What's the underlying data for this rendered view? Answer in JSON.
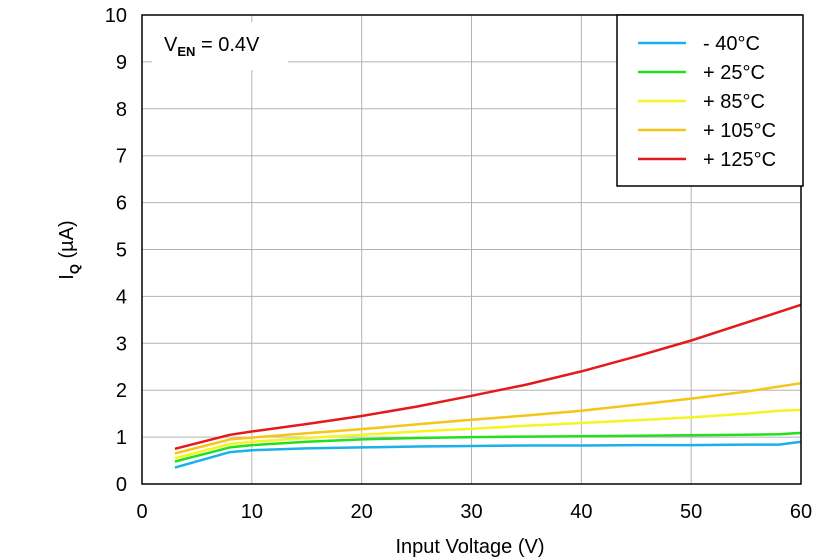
{
  "chart_data": {
    "type": "line",
    "title": "",
    "annotation": {
      "main": "V",
      "sub": "EN",
      "rest": " = 0.4V"
    },
    "xlabel": "Input Voltage (V)",
    "ylabel": {
      "main": "I",
      "sub": "Q",
      "rest": " (µA)"
    },
    "xlim": [
      0,
      60
    ],
    "ylim": [
      0,
      10
    ],
    "xticks": [
      0,
      10,
      20,
      30,
      40,
      50,
      60
    ],
    "yticks": [
      0,
      1,
      2,
      3,
      4,
      5,
      6,
      7,
      8,
      9,
      10
    ],
    "grid": true,
    "legend_position": "top-right",
    "series": [
      {
        "name": "- 40°C",
        "color": "#1ab0ea",
        "x": [
          3,
          8,
          10,
          15,
          20,
          25,
          30,
          35,
          40,
          45,
          50,
          55,
          58,
          60
        ],
        "values": [
          0.35,
          0.68,
          0.72,
          0.76,
          0.78,
          0.8,
          0.81,
          0.82,
          0.82,
          0.83,
          0.83,
          0.84,
          0.84,
          0.9
        ]
      },
      {
        "name": "+ 25°C",
        "color": "#22e01c",
        "x": [
          3,
          8,
          10,
          15,
          20,
          25,
          30,
          35,
          40,
          45,
          50,
          55,
          58,
          60
        ],
        "values": [
          0.48,
          0.78,
          0.83,
          0.9,
          0.95,
          0.98,
          1.0,
          1.01,
          1.02,
          1.03,
          1.04,
          1.05,
          1.06,
          1.09
        ]
      },
      {
        "name": "+ 85°C",
        "color": "#f5f520",
        "x": [
          3,
          8,
          10,
          15,
          20,
          25,
          30,
          35,
          40,
          45,
          50,
          55,
          58,
          60
        ],
        "values": [
          0.55,
          0.85,
          0.9,
          0.98,
          1.05,
          1.12,
          1.18,
          1.24,
          1.3,
          1.36,
          1.42,
          1.5,
          1.56,
          1.58
        ]
      },
      {
        "name": "+ 105°C",
        "color": "#f5c518",
        "x": [
          3,
          8,
          10,
          15,
          20,
          25,
          30,
          35,
          40,
          45,
          50,
          55,
          60
        ],
        "values": [
          0.65,
          0.95,
          0.99,
          1.08,
          1.17,
          1.27,
          1.37,
          1.46,
          1.56,
          1.69,
          1.82,
          1.97,
          2.15
        ]
      },
      {
        "name": "+ 125°C",
        "color": "#e41a1a",
        "x": [
          3,
          8,
          10,
          15,
          20,
          25,
          30,
          35,
          40,
          45,
          50,
          55,
          60
        ],
        "values": [
          0.75,
          1.05,
          1.12,
          1.28,
          1.45,
          1.65,
          1.88,
          2.12,
          2.4,
          2.72,
          3.06,
          3.44,
          3.82
        ]
      }
    ]
  }
}
